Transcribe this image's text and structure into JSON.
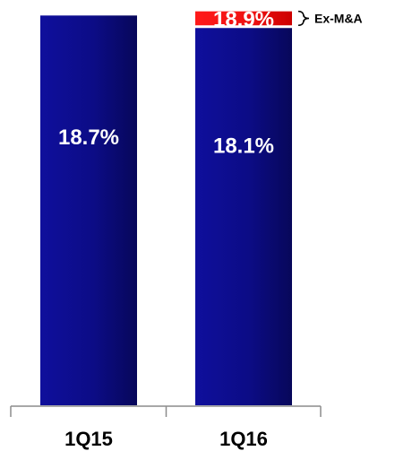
{
  "chart_data": {
    "type": "bar",
    "stacked": true,
    "categories": [
      "1Q15",
      "1Q16"
    ],
    "series": [
      {
        "values": [
          18.7,
          18.1
        ],
        "color": "#0a0a78",
        "value_labels": [
          "18.7%",
          "18.1%"
        ]
      },
      {
        "values": [
          0,
          0.8
        ],
        "color": "#ee1111",
        "value_labels": [
          "",
          "18.9%"
        ]
      }
    ],
    "title": "",
    "xlabel": "",
    "ylabel": "",
    "ylim": [
      0,
      19.1
    ],
    "grid": false,
    "legend": "none",
    "annotations": [
      {
        "category": "1Q16",
        "text": "Ex-M&A"
      }
    ]
  }
}
